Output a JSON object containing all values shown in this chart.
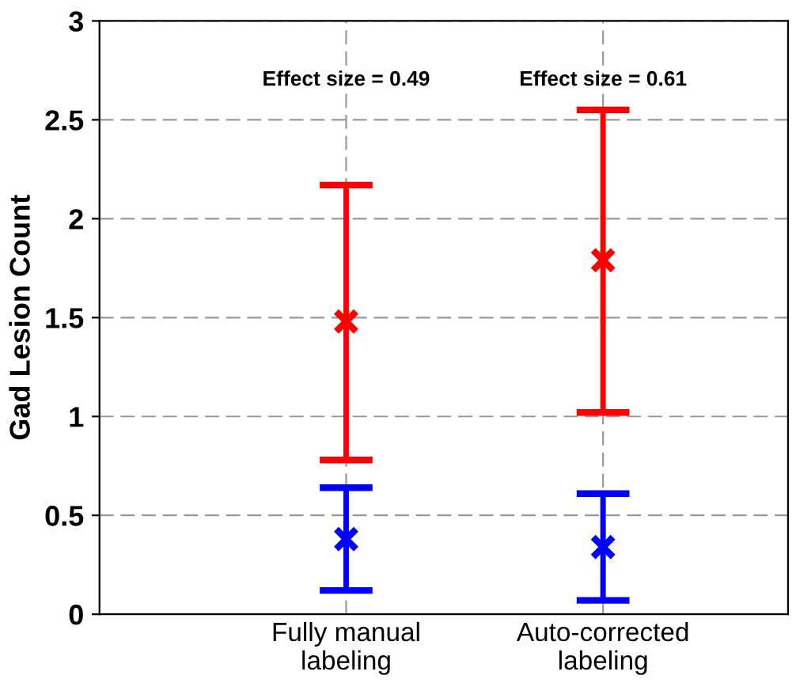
{
  "chart_data": {
    "type": "scatter",
    "ylabel": "Gad Lesion Count",
    "categories": [
      "Fully manual\nlabeling",
      "Auto-corrected\nlabeling"
    ],
    "series": [
      {
        "color": "#0000ff",
        "values": [
          0.38,
          0.34
        ],
        "errors": [
          [
            0.12,
            0.64
          ],
          [
            0.07,
            0.61
          ]
        ]
      },
      {
        "color": "#ff0000",
        "values": [
          1.48,
          1.79
        ],
        "errors": [
          [
            0.78,
            2.17
          ],
          [
            1.02,
            2.55
          ]
        ]
      }
    ],
    "annotations": [
      "Effect size = 0.49",
      "Effect size = 0.61"
    ],
    "ylim": [
      0,
      3
    ],
    "yticks": [
      0,
      0.5,
      1,
      1.5,
      2,
      2.5,
      3
    ],
    "grid": true,
    "marker": "cross",
    "legend": false
  }
}
